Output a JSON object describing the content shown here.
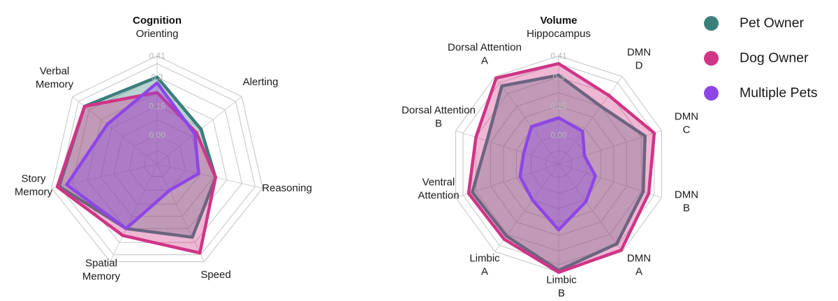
{
  "legend": {
    "items": [
      {
        "label": "Pet Owner",
        "color": "#3a7f7b"
      },
      {
        "label": "Dog Owner",
        "color": "#cf3586"
      },
      {
        "label": "Multiple Pets",
        "color": "#8d46e6"
      }
    ]
  },
  "chart_data": [
    {
      "type": "radar",
      "title": "Cognition",
      "axes": [
        "Orienting",
        "Alerting",
        "Reasoning",
        "Speed",
        "Spatial Memory",
        "Story Memory",
        "Verbal Memory"
      ],
      "rmin": -0.15,
      "rmax": 0.41,
      "grid_levels": [
        -0.15,
        -0.08,
        0.0,
        0.08,
        0.15,
        0.22,
        0.3,
        0.37,
        0.41
      ],
      "tick_labels": [
        {
          "value": 0.0,
          "label": "0.00"
        },
        {
          "value": 0.15,
          "label": "0.15"
        },
        {
          "value": 0.3,
          "label": "0.3"
        },
        {
          "value": 0.41,
          "label": "0.41"
        }
      ],
      "series": [
        {
          "name": "Pet Owner",
          "values": [
            0.3,
            0.14,
            0.16,
            0.27,
            0.22,
            0.37,
            0.33
          ]
        },
        {
          "name": "Dog Owner",
          "values": [
            0.22,
            0.11,
            0.16,
            0.36,
            0.26,
            0.38,
            0.33
          ]
        },
        {
          "name": "Multiple Pets",
          "values": [
            0.27,
            0.1,
            0.07,
            0.0,
            0.22,
            0.33,
            0.18
          ]
        }
      ]
    },
    {
      "type": "radar",
      "title": "Volume",
      "axes": [
        "Hippocampus",
        "DMN D",
        "DMN C",
        "DMN B",
        "DMN A",
        "Limbic B",
        "Limbic A",
        "Ventral Attention",
        "Dorsal Attention B",
        "Dorsal Attention A"
      ],
      "rmin": -0.15,
      "rmax": 0.41,
      "grid_levels": [
        -0.15,
        -0.08,
        0.0,
        0.08,
        0.15,
        0.22,
        0.3,
        0.37,
        0.41
      ],
      "tick_labels": [
        {
          "value": 0.0,
          "label": "0.00"
        },
        {
          "value": 0.15,
          "label": "0.15"
        },
        {
          "value": 0.3,
          "label": "0.3"
        },
        {
          "value": 0.41,
          "label": "0.41"
        }
      ],
      "series": [
        {
          "name": "Pet Owner",
          "values": [
            0.31,
            0.22,
            0.32,
            0.31,
            0.36,
            0.4,
            0.31,
            0.32,
            0.24,
            0.35
          ]
        },
        {
          "name": "Dog Owner",
          "values": [
            0.37,
            0.29,
            0.37,
            0.34,
            0.4,
            0.41,
            0.33,
            0.34,
            0.3,
            0.4
          ]
        },
        {
          "name": "Multiple Pets",
          "values": [
            0.09,
            0.06,
            -0.01,
            0.05,
            0.09,
            0.19,
            0.08,
            0.06,
            0.04,
            0.09
          ]
        }
      ]
    }
  ]
}
